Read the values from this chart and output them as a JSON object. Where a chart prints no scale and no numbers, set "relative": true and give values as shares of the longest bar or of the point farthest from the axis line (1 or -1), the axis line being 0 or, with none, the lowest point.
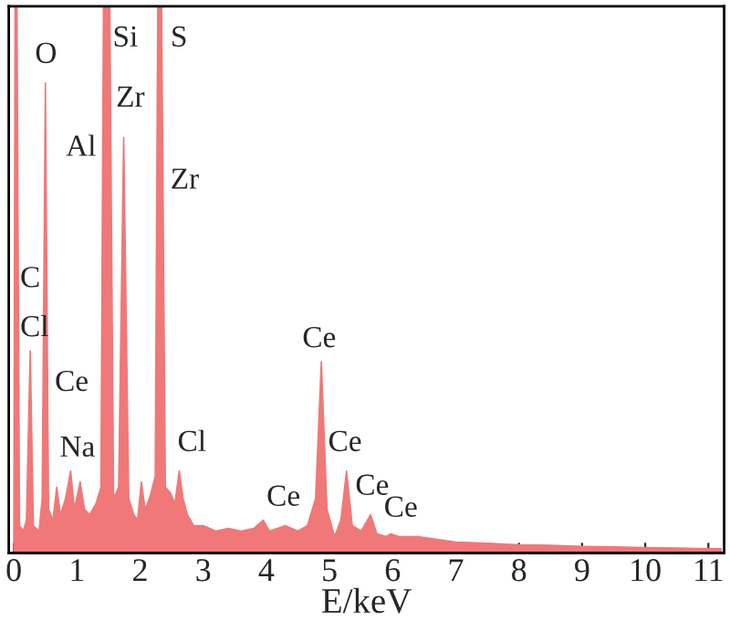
{
  "chart_data": {
    "type": "area",
    "relative": true,
    "xlabel": "E/keV",
    "xlim": [
      -0.08,
      11.25
    ],
    "xticks": [
      0,
      1,
      2,
      3,
      4,
      5,
      6,
      7,
      8,
      9,
      10,
      11
    ],
    "grid": false,
    "legend": false,
    "series": [
      {
        "color": "#f07878",
        "x": [
          0.0,
          0.02,
          0.05,
          0.09,
          0.15,
          0.2,
          0.26,
          0.31,
          0.4,
          0.45,
          0.5,
          0.55,
          0.62,
          0.68,
          0.74,
          0.82,
          0.9,
          0.96,
          1.05,
          1.12,
          1.2,
          1.3,
          1.38,
          1.42,
          1.52,
          1.58,
          1.66,
          1.74,
          1.82,
          1.9,
          1.96,
          2.02,
          2.08,
          2.15,
          2.24,
          2.28,
          2.34,
          2.4,
          2.48,
          2.55,
          2.62,
          2.68,
          2.75,
          2.85,
          3.0,
          3.2,
          3.4,
          3.6,
          3.8,
          3.95,
          4.05,
          4.3,
          4.5,
          4.65,
          4.78,
          4.87,
          4.96,
          5.08,
          5.18,
          5.27,
          5.36,
          5.5,
          5.65,
          5.75,
          5.9,
          5.97,
          6.1,
          6.4,
          6.7,
          7.0,
          7.5,
          8.0,
          8.5,
          9.0,
          9.5,
          10.0,
          10.5,
          11.0,
          11.2
        ],
        "values": [
          0.02,
          1.0,
          1.0,
          0.05,
          0.04,
          0.06,
          0.37,
          0.05,
          0.04,
          0.1,
          0.86,
          0.08,
          0.06,
          0.12,
          0.07,
          0.1,
          0.15,
          0.08,
          0.13,
          0.08,
          0.07,
          0.09,
          0.12,
          1.0,
          1.0,
          0.1,
          0.12,
          0.76,
          0.1,
          0.07,
          0.06,
          0.13,
          0.08,
          0.1,
          0.14,
          1.0,
          1.0,
          0.12,
          0.11,
          0.09,
          0.15,
          0.1,
          0.07,
          0.05,
          0.05,
          0.04,
          0.045,
          0.04,
          0.045,
          0.06,
          0.04,
          0.05,
          0.04,
          0.05,
          0.1,
          0.35,
          0.08,
          0.03,
          0.06,
          0.15,
          0.05,
          0.04,
          0.07,
          0.035,
          0.03,
          0.035,
          0.03,
          0.03,
          0.025,
          0.02,
          0.018,
          0.015,
          0.014,
          0.012,
          0.011,
          0.01,
          0.009,
          0.008,
          0.008
        ]
      }
    ],
    "annotations": [
      "O",
      "Si",
      "S",
      "Zr",
      "Al",
      "Zr",
      "C",
      "Cl",
      "Ce",
      "Na",
      "Cl",
      "Ce",
      "Ce",
      "Ce",
      "Ce",
      "Ce"
    ]
  }
}
